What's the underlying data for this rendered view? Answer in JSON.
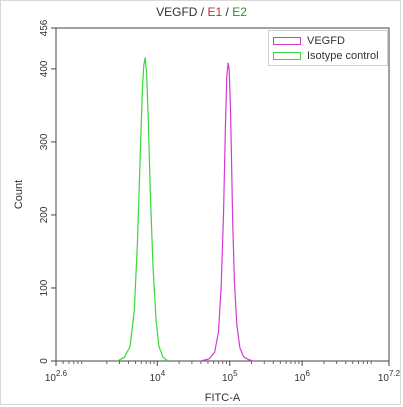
{
  "title": {
    "main": "VEGFD",
    "sep1": " / ",
    "e1": "E1",
    "sep2": " / ",
    "e2": "E2"
  },
  "colors": {
    "series_vegfd": "#d23bd2",
    "series_isotype": "#3cd63c",
    "title_e1": "#cc2a2a",
    "title_e2": "#1e9a1e"
  },
  "chart_data": {
    "type": "line",
    "title": "VEGFD / E1 / E2",
    "xlabel": "FITC-A",
    "ylabel": "Count",
    "x_scale": "log10",
    "xlim": [
      398,
      15849
    ],
    "ylim": [
      0,
      456
    ],
    "x_ticks": [
      {
        "label_base": "10",
        "label_exp": "2.6",
        "value": 398
      },
      {
        "label_base": "10",
        "label_exp": "4",
        "value": 10000
      },
      {
        "label_base": "10",
        "label_exp": "5",
        "value": 100000
      },
      {
        "label_base": "10",
        "label_exp": "6",
        "value": 1000000
      },
      {
        "label_base": "10",
        "label_exp": "7.2",
        "value": 15848932
      }
    ],
    "y_ticks": [
      0,
      100,
      200,
      300,
      400,
      456
    ],
    "grid": false,
    "legend_position": "top-right",
    "series": [
      {
        "name": "VEGFD",
        "color": "#d23bd2",
        "x": [
          40000,
          52000,
          62000,
          70000,
          76000,
          82000,
          87000,
          91000,
          95000,
          98000,
          102000,
          106000,
          110000,
          116000,
          125000,
          138000,
          155000,
          180000,
          210000
        ],
        "y": [
          0,
          3,
          12,
          40,
          100,
          200,
          320,
          390,
          408,
          400,
          350,
          270,
          190,
          110,
          50,
          18,
          6,
          2,
          0
        ]
      },
      {
        "name": "Isotype control",
        "color": "#3cd63c",
        "x": [
          2800,
          3500,
          4200,
          4800,
          5300,
          5800,
          6200,
          6500,
          6800,
          7100,
          7500,
          8000,
          8700,
          9600,
          10500,
          12000,
          14000
        ],
        "y": [
          0,
          5,
          20,
          70,
          160,
          280,
          370,
          405,
          415,
          395,
          330,
          230,
          130,
          55,
          20,
          5,
          0
        ]
      }
    ]
  }
}
